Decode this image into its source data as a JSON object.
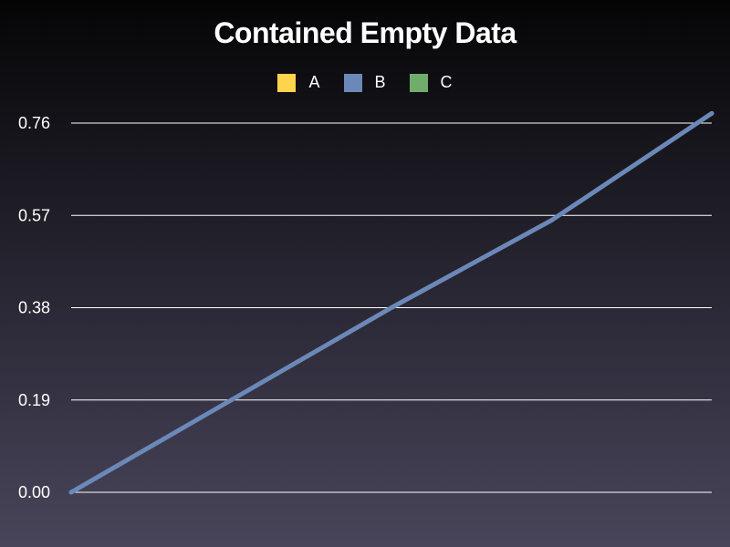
{
  "chart_data": {
    "type": "line",
    "title": "Contained Empty Data",
    "xlabel": "",
    "ylabel": "",
    "ylim": [
      0,
      0.76
    ],
    "yticks": [
      "0.00",
      "0.19",
      "0.38",
      "0.57",
      "0.76"
    ],
    "grid": true,
    "legend_position": "top-center",
    "legend": [
      {
        "name": "A",
        "color": "#ffd44d"
      },
      {
        "name": "B",
        "color": "#6b88b8"
      },
      {
        "name": "C",
        "color": "#70ad6c"
      }
    ],
    "series": [
      {
        "name": "A",
        "color": "#ffd44d",
        "values": []
      },
      {
        "name": "B",
        "color": "#6b88b8",
        "values": [
          0.0,
          0.19,
          0.38,
          0.56,
          0.78
        ]
      },
      {
        "name": "C",
        "color": "#70ad6c",
        "values": []
      }
    ]
  }
}
